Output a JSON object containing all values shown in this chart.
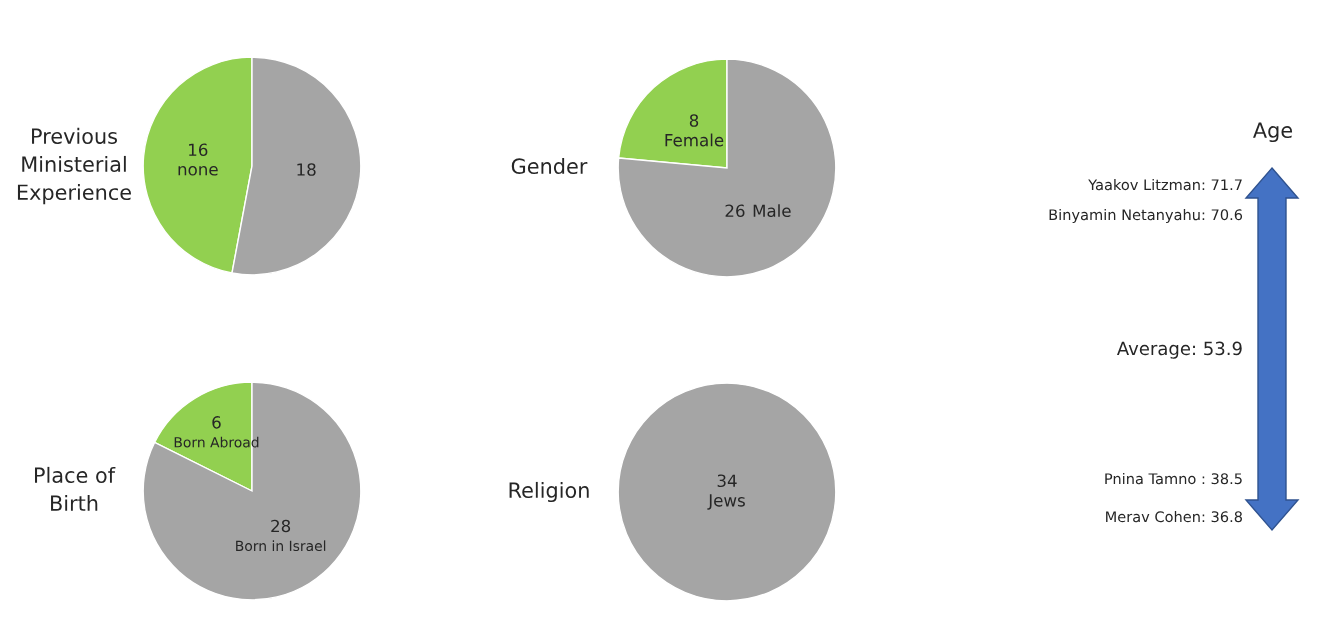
{
  "chart_data": [
    {
      "type": "pie",
      "title": "Previous\nMinisterial\nExperience",
      "categories": [
        "none",
        null
      ],
      "values": [
        16,
        18
      ],
      "colors": [
        "#92d050",
        "#a5a5a5"
      ],
      "data_labels": true
    },
    {
      "type": "pie",
      "title": "Gender",
      "categories": [
        "Female",
        "Male"
      ],
      "values": [
        8,
        26
      ],
      "colors": [
        "#92d050",
        "#a5a5a5"
      ],
      "data_labels": true
    },
    {
      "type": "pie",
      "title": "Place of\nBirth",
      "categories": [
        "Born Abroad",
        "Born in Israel"
      ],
      "values": [
        6,
        28
      ],
      "colors": [
        "#92d050",
        "#a5a5a5"
      ],
      "data_labels": true
    },
    {
      "type": "pie",
      "title": "Religion",
      "categories": [
        "Jews"
      ],
      "values": [
        34
      ],
      "colors": [
        "#a5a5a5"
      ],
      "data_labels": true
    },
    {
      "type": "other",
      "title": "Age",
      "annotations": [
        "Yaakov Litzman: 71.7",
        "Binyamin Netanyahu: 70.6",
        "Average: 53.9",
        "Pnina Tamno : 38.5",
        "Merav Cohen: 36.8"
      ]
    }
  ]
}
